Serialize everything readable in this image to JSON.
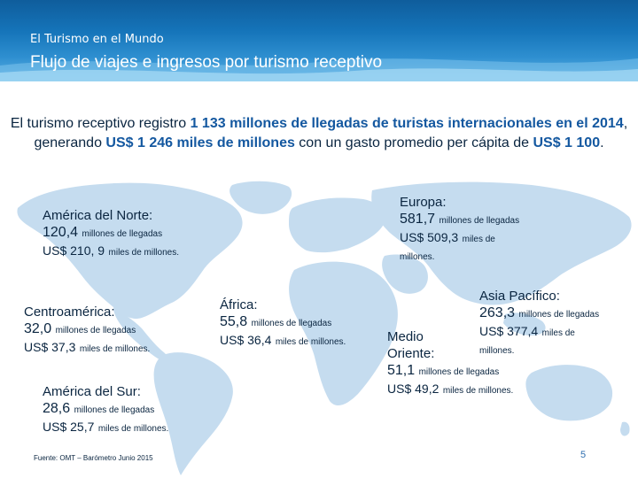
{
  "header": {
    "supertitle": "El Turismo en el Mundo",
    "title": "Flujo de viajes e ingresos por turismo receptivo"
  },
  "intro": {
    "part1": "El turismo receptivo registro ",
    "arrivals": "1 133 millones de llegadas de turistas internacionales en el 2014",
    "part2": ", generando ",
    "revenue": "US$ 1 246 miles de millones",
    "part3": " con un gasto promedio per cápita de ",
    "per_capita": "US$ 1 100",
    "part4": "."
  },
  "regions": {
    "america_norte": {
      "name": "América del Norte:",
      "arrivals_value": "120,4",
      "arrivals_unit": "millones de llegadas",
      "revenue_value": "US$ 210, 9",
      "revenue_unit": "miles de millones."
    },
    "centroamerica": {
      "name": "Centroamérica:",
      "arrivals_value": "32,0",
      "arrivals_unit": "millones de llegadas",
      "revenue_value": "US$ 37,3",
      "revenue_unit": "miles de millones."
    },
    "america_sur": {
      "name": "América del Sur:",
      "arrivals_value": "28,6",
      "arrivals_unit": "millones de llegadas",
      "revenue_value": "US$ 25,7",
      "revenue_unit": "miles de millones."
    },
    "africa": {
      "name": "África:",
      "arrivals_value": "55,8",
      "arrivals_unit": "millones de llegadas",
      "revenue_value": "US$ 36,4",
      "revenue_unit": "miles de millones."
    },
    "europa": {
      "name": "Europa:",
      "arrivals_value": "581,7",
      "arrivals_unit": "millones de llegadas",
      "revenue_value": "US$ 509,3",
      "revenue_unit": "miles de",
      "revenue_unit2": "millones."
    },
    "asia_pacifico": {
      "name": "Asia Pacífico:",
      "arrivals_value": "263,3",
      "arrivals_unit": "millones de llegadas",
      "revenue_value": "US$ 377,4",
      "revenue_unit": "miles de",
      "revenue_unit2": "millones."
    },
    "medio_oriente": {
      "name_line1": "Medio",
      "name_line2": "Oriente:",
      "arrivals_value": "51,1",
      "arrivals_unit": "millones de llegadas",
      "revenue_value": "US$ 49,2",
      "revenue_unit": "miles de millones."
    }
  },
  "footer": {
    "source": "Fuente: OMT – Barómetro Junio 2015",
    "page_number": "5"
  },
  "colors": {
    "banner": "#1574b9",
    "map_land": "#c5dcef",
    "highlight": "#1458a0",
    "text": "#0a2540"
  }
}
